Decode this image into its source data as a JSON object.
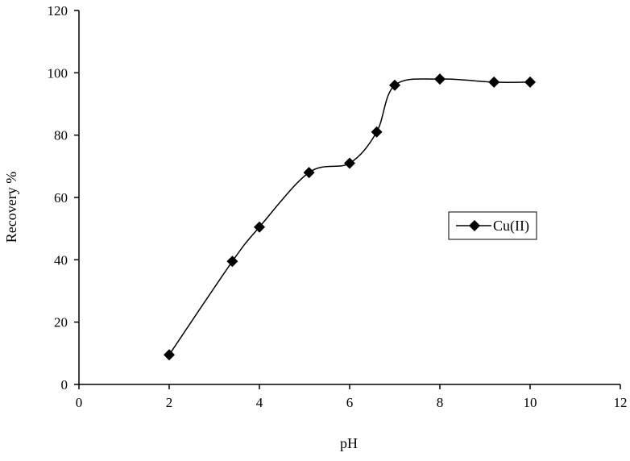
{
  "chart_data": {
    "type": "line",
    "xlabel": "pH",
    "ylabel": "Recovery %",
    "xlim": [
      0,
      12
    ],
    "ylim": [
      0,
      120
    ],
    "x_ticks": [
      "0",
      "2",
      "4",
      "6",
      "8",
      "10",
      "12"
    ],
    "y_ticks": [
      "0",
      "20",
      "40",
      "60",
      "80",
      "100",
      "120"
    ],
    "grid": false,
    "legend_position": "center-right",
    "series": [
      {
        "name": "Cu(II)",
        "marker": "diamond",
        "smooth": true,
        "color": "#000000",
        "x": [
          2,
          3.4,
          4,
          5.1,
          6,
          6.6,
          7,
          8,
          9.2,
          10
        ],
        "y": [
          9.5,
          39.5,
          50.5,
          68,
          71,
          81,
          96,
          98,
          97,
          97
        ]
      }
    ]
  }
}
